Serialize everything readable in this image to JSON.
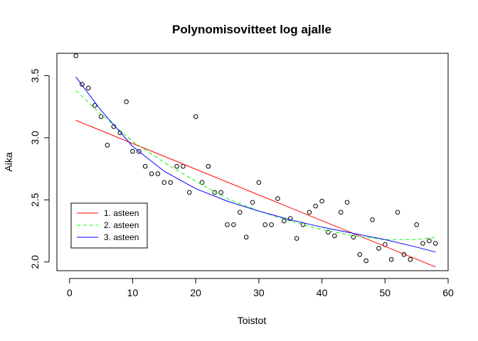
{
  "chart_data": {
    "type": "scatter",
    "title": "Polynomisovitteet log ajalle",
    "xlabel": "Toistot",
    "ylabel": "Aika",
    "xlim": [
      -2,
      60
    ],
    "ylim": [
      1.93,
      3.68
    ],
    "xticks": [
      0,
      10,
      20,
      30,
      40,
      50,
      60
    ],
    "yticks": [
      2.0,
      2.5,
      3.0,
      3.5
    ],
    "ytick_labels": [
      "2.0",
      "2.5",
      "3.0",
      "3.5"
    ],
    "grid": false,
    "legend_position": "bottom-left",
    "points": {
      "x": [
        1,
        2,
        3,
        4,
        5,
        6,
        7,
        8,
        9,
        10,
        11,
        12,
        13,
        14,
        15,
        16,
        17,
        18,
        19,
        20,
        21,
        22,
        23,
        24,
        25,
        26,
        27,
        28,
        29,
        30,
        31,
        32,
        33,
        34,
        35,
        36,
        37,
        38,
        39,
        40,
        41,
        42,
        43,
        44,
        45,
        46,
        47,
        48,
        49,
        50,
        51,
        52,
        53,
        54,
        55,
        56,
        57,
        58
      ],
      "y": [
        3.66,
        3.43,
        3.4,
        3.26,
        3.17,
        2.94,
        3.09,
        3.04,
        3.29,
        2.89,
        2.89,
        2.77,
        2.71,
        2.71,
        2.64,
        2.64,
        2.77,
        2.77,
        2.56,
        3.17,
        2.64,
        2.77,
        2.56,
        2.56,
        2.3,
        2.3,
        2.4,
        2.2,
        2.48,
        2.64,
        2.3,
        2.3,
        2.51,
        2.33,
        2.35,
        2.19,
        2.3,
        2.4,
        2.45,
        2.49,
        2.24,
        2.21,
        2.4,
        2.48,
        2.2,
        2.06,
        2.01,
        2.34,
        2.11,
        2.14,
        2.02,
        2.4,
        2.06,
        2.02,
        2.3,
        2.15,
        2.17,
        2.15
      ]
    },
    "fits": [
      {
        "name": "1. asteen",
        "color": "#ff0000",
        "dash": "solid",
        "x": [
          1,
          58
        ],
        "y": [
          3.14,
          1.96
        ]
      },
      {
        "name": "2. asteen",
        "color": "#00ff00",
        "dash": "dashed",
        "x": [
          1,
          5,
          10,
          15,
          20,
          25,
          30,
          35,
          40,
          45,
          50,
          55,
          58
        ],
        "y": [
          3.38,
          3.19,
          2.97,
          2.8,
          2.65,
          2.51,
          2.41,
          2.33,
          2.26,
          2.21,
          2.18,
          2.18,
          2.2
        ]
      },
      {
        "name": "3. asteen",
        "color": "#0000ff",
        "dash": "solid",
        "x": [
          1,
          5,
          10,
          15,
          20,
          25,
          30,
          35,
          40,
          45,
          50,
          55,
          58
        ],
        "y": [
          3.49,
          3.22,
          2.93,
          2.73,
          2.59,
          2.49,
          2.41,
          2.34,
          2.28,
          2.23,
          2.18,
          2.12,
          2.08
        ]
      }
    ]
  }
}
